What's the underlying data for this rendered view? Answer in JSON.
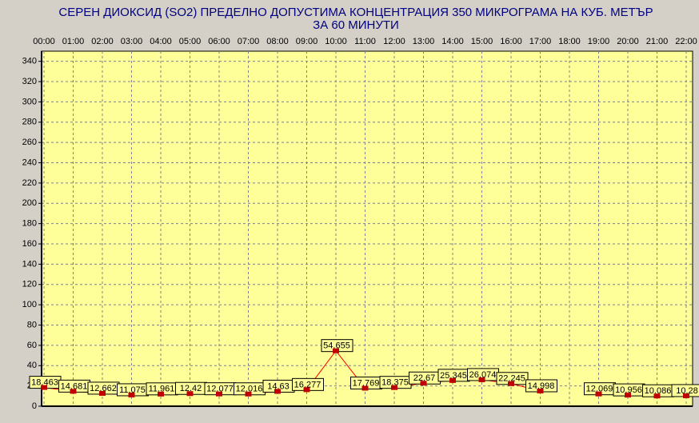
{
  "chart_data": {
    "type": "line",
    "title": "СЕРЕН ДИОКСИД  (SO2)  ПРЕДЕЛНО ДОПУСТИМА КОНЦЕНТРАЦИЯ 350 МИКРОГРАМА  НА КУБ. МЕТЪР",
    "subtitle": "ЗА 60 МИНУТИ",
    "categories": [
      "00:00",
      "01:00",
      "02:00",
      "03:00",
      "04:00",
      "05:00",
      "06:00",
      "07:00",
      "08:00",
      "09:00",
      "10:00",
      "11:00",
      "12:00",
      "13:00",
      "14:00",
      "15:00",
      "16:00",
      "17:00",
      "18:00",
      "19:00",
      "20:00",
      "21:00",
      "22:00"
    ],
    "values": [
      18.463,
      14.681,
      12.662,
      11.075,
      11.961,
      12.42,
      12.077,
      12.016,
      14.63,
      16.277,
      54.655,
      17.769,
      18.375,
      22.67,
      25.345,
      26.074,
      22.245,
      14.998,
      null,
      12.069,
      10.956,
      10.086,
      10.28
    ],
    "color": "#ff0000",
    "ylim": [
      0,
      350
    ],
    "yticks": [
      0,
      20,
      40,
      60,
      80,
      100,
      120,
      140,
      160,
      180,
      200,
      220,
      240,
      260,
      280,
      300,
      320,
      340
    ],
    "grid": true
  }
}
